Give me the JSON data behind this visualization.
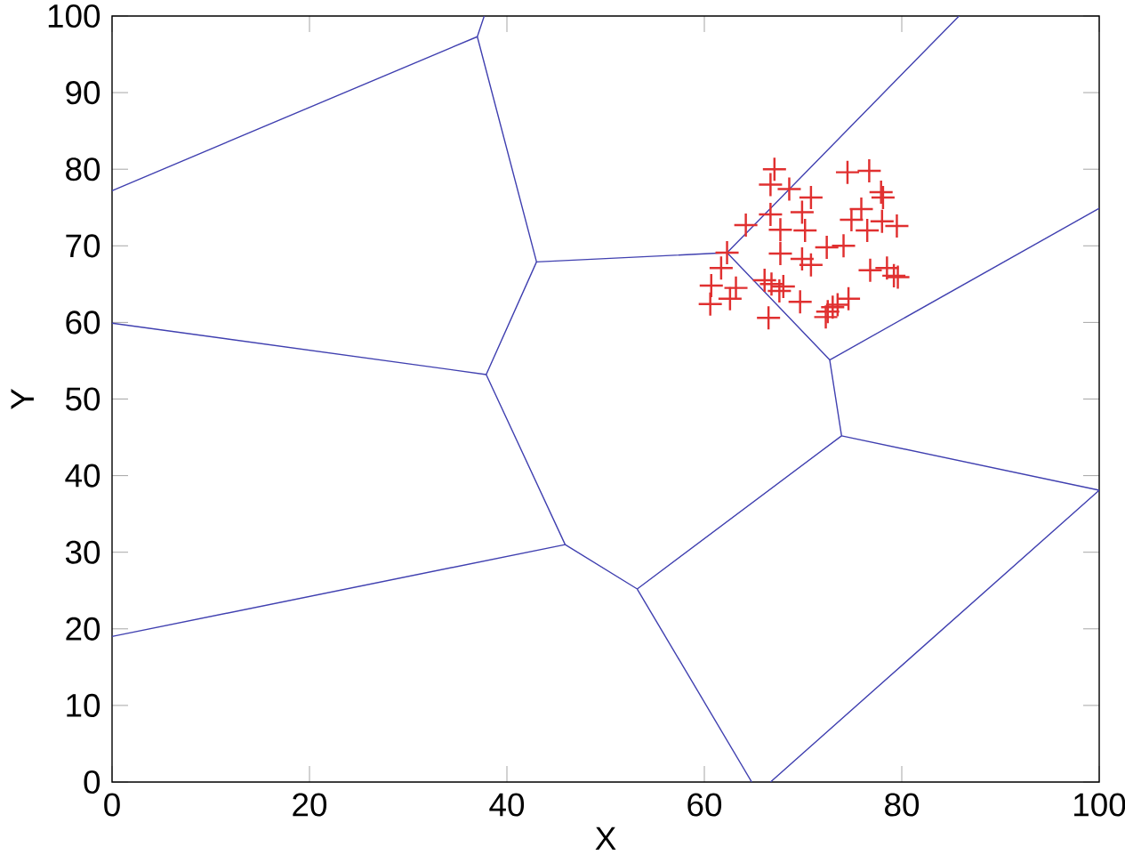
{
  "chart_data": {
    "type": "scatter",
    "xlabel": "X",
    "ylabel": "Y",
    "xlim": [
      0,
      100
    ],
    "ylim": [
      0,
      100
    ],
    "xticks": [
      0,
      20,
      40,
      60,
      80,
      100
    ],
    "yticks": [
      0,
      10,
      20,
      30,
      40,
      50,
      60,
      70,
      80,
      90,
      100
    ],
    "grid": false,
    "series": [
      {
        "type": "line",
        "color": "#4040b0",
        "x": [
          0,
          37.0,
          37.7
        ],
        "values": [
          77.2,
          97.3,
          100
        ]
      },
      {
        "type": "line",
        "color": "#4040b0",
        "x": [
          37.0,
          43.0,
          62.3,
          85.8
        ],
        "values": [
          97.3,
          67.9,
          69.1,
          100
        ]
      },
      {
        "type": "line",
        "color": "#4040b0",
        "x": [
          0,
          37.9,
          43.0
        ],
        "values": [
          59.9,
          53.2,
          67.9
        ]
      },
      {
        "type": "line",
        "color": "#4040b0",
        "x": [
          37.9,
          45.9,
          53.2,
          73.9,
          72.7,
          62.3
        ],
        "values": [
          53.2,
          31.0,
          25.2,
          45.2,
          55.1,
          69.1
        ]
      },
      {
        "type": "line",
        "color": "#4040b0",
        "x": [
          72.7,
          100
        ],
        "values": [
          55.1,
          74.9
        ]
      },
      {
        "type": "line",
        "color": "#4040b0",
        "x": [
          73.9,
          100,
          66.7
        ],
        "values": [
          45.2,
          38.1,
          0
        ]
      },
      {
        "type": "line",
        "color": "#4040b0",
        "x": [
          0,
          45.9
        ],
        "values": [
          19.0,
          31.0
        ]
      },
      {
        "type": "line",
        "color": "#4040b0",
        "x": [
          53.2,
          64.8
        ],
        "values": [
          25.2,
          0
        ]
      },
      {
        "color": "#e03030",
        "marker": "cross",
        "x": [
          67.1,
          66.7,
          68.6,
          70.8,
          74.5,
          76.7,
          77.9,
          78.1,
          66.7,
          69.9,
          64.2,
          67.7,
          70.2,
          75.9,
          74.9,
          78.0,
          79.5,
          76.5,
          67.7,
          72.4,
          74.1,
          62.3,
          61.7,
          69.9,
          70.8,
          76.8,
          78.5,
          79.2,
          79.6,
          60.7,
          63.2,
          62.6,
          60.6,
          66.1,
          66.8,
          68.0,
          67.6,
          69.7,
          66.5,
          73.0,
          72.5,
          73.5,
          74.6,
          72.3
        ],
        "values": [
          80.0,
          78.0,
          77.4,
          76.3,
          79.6,
          79.8,
          77.0,
          76.3,
          74.1,
          74.4,
          72.7,
          72.1,
          72.0,
          74.8,
          73.4,
          73.2,
          72.6,
          72.0,
          69.0,
          69.8,
          70.0,
          69.1,
          67.1,
          68.3,
          67.5,
          66.8,
          67.1,
          66.1,
          65.9,
          64.8,
          64.5,
          63.1,
          62.4,
          65.5,
          65.0,
          64.7,
          64.1,
          62.7,
          60.6,
          62.0,
          61.4,
          62.3,
          63.1,
          60.7
        ]
      }
    ]
  }
}
